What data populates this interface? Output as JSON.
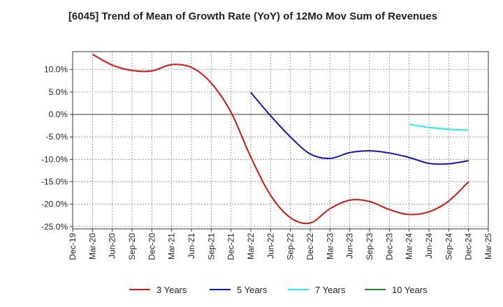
{
  "chart_data": {
    "type": "line",
    "title": "[6045]  Trend of Mean of Growth Rate (YoY) of 12Mo Mov Sum of Revenues",
    "xlabel": "",
    "ylabel": "",
    "ylim": [
      -25.5,
      14.0
    ],
    "y_ticks": [
      10,
      5,
      0,
      -5,
      -10,
      -15,
      -20,
      -25
    ],
    "y_tick_labels": [
      "10.0%",
      "5.0%",
      "0.0%",
      "-5.0%",
      "-10.0%",
      "-15.0%",
      "-20.0%",
      "-25.0%"
    ],
    "x_tick_labels": [
      "Dec-19",
      "Mar-20",
      "Jun-20",
      "Sep-20",
      "Dec-20",
      "Mar-21",
      "Jun-21",
      "Sep-21",
      "Dec-21",
      "Mar-22",
      "Jun-22",
      "Sep-22",
      "Dec-22",
      "Mar-23",
      "Jun-23",
      "Sep-23",
      "Dec-23",
      "Mar-24",
      "Jun-24",
      "Sep-24",
      "Dec-24",
      "Mar-25"
    ],
    "x_unit": "months since Dec-19",
    "xlim": [
      0,
      63
    ],
    "grid": true,
    "legend_position": "bottom",
    "series": [
      {
        "name": "3 Years",
        "color": "#dd1111",
        "x": [
          3,
          6,
          9,
          12,
          15,
          18,
          21,
          24,
          27,
          30,
          33,
          36,
          39,
          42,
          45,
          48,
          51,
          54,
          57,
          60
        ],
        "y": [
          13.4,
          11.0,
          9.8,
          9.7,
          11.1,
          10.5,
          7.0,
          0.5,
          -9.5,
          -18.0,
          -23.0,
          -24.2,
          -21.0,
          -19.1,
          -19.4,
          -21.2,
          -22.3,
          -21.7,
          -19.3,
          -15.0
        ]
      },
      {
        "name": "5 Years",
        "color": "#1111cc",
        "x": [
          27,
          30,
          33,
          36,
          39,
          42,
          45,
          48,
          51,
          54,
          57,
          60
        ],
        "y": [
          4.9,
          -0.3,
          -5.0,
          -8.8,
          -9.8,
          -8.5,
          -8.1,
          -8.6,
          -9.6,
          -10.9,
          -11.0,
          -10.3
        ]
      },
      {
        "name": "7 Years",
        "color": "#22eeee",
        "x": [
          51,
          54,
          57,
          60
        ],
        "y": [
          -2.2,
          -2.9,
          -3.3,
          -3.5
        ]
      },
      {
        "name": "10 Years",
        "color": "#228822",
        "x": [],
        "y": []
      }
    ]
  }
}
